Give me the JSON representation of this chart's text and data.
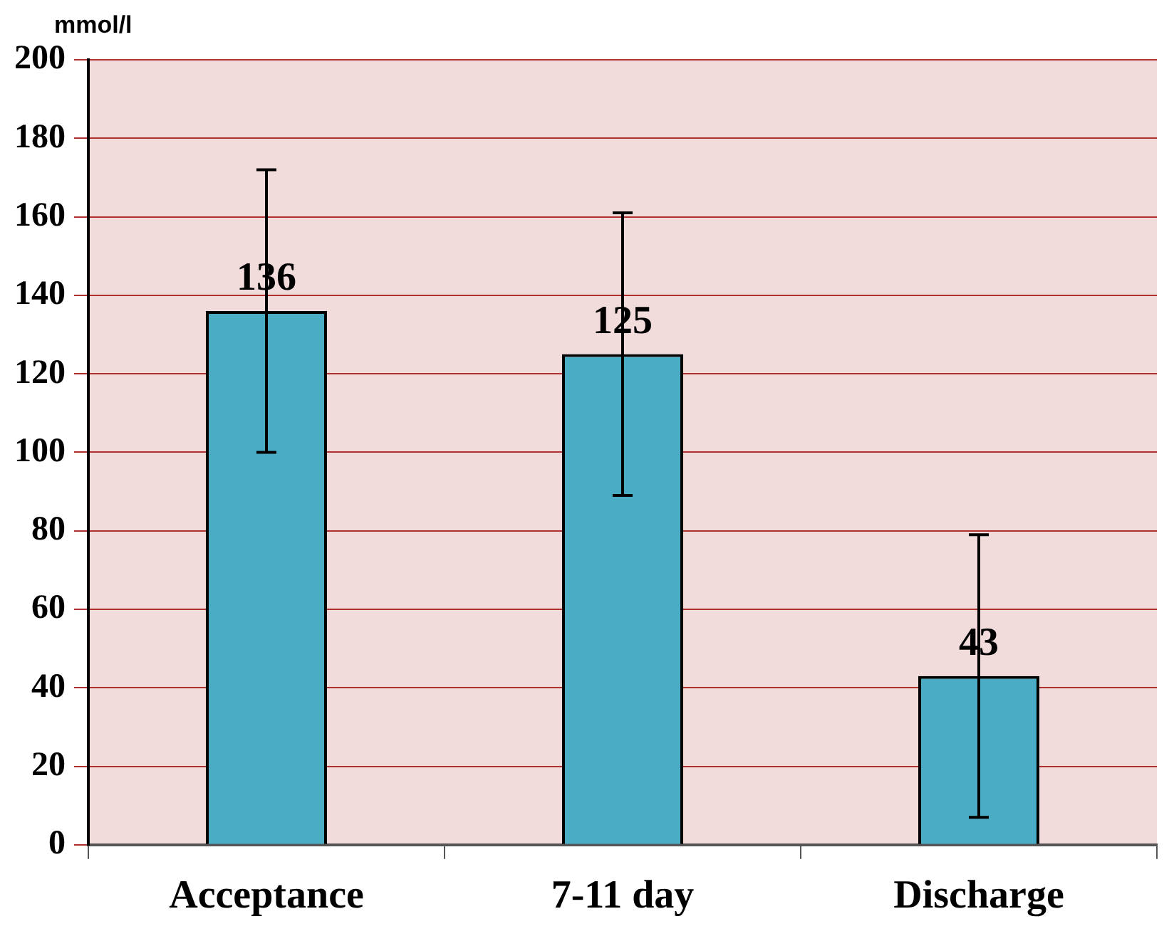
{
  "chart_data": {
    "type": "bar",
    "ylabel": "mmol/l",
    "categories": [
      "Acceptance",
      "7-11 day",
      "Discharge"
    ],
    "values": [
      136,
      125,
      43
    ],
    "errors": [
      36,
      36,
      36
    ],
    "color": "#4bacc6",
    "ylim": [
      0,
      200
    ],
    "yticks": [
      0,
      20,
      40,
      60,
      80,
      100,
      120,
      140,
      160,
      180,
      200
    ],
    "grid": "y",
    "data_labels": true
  }
}
